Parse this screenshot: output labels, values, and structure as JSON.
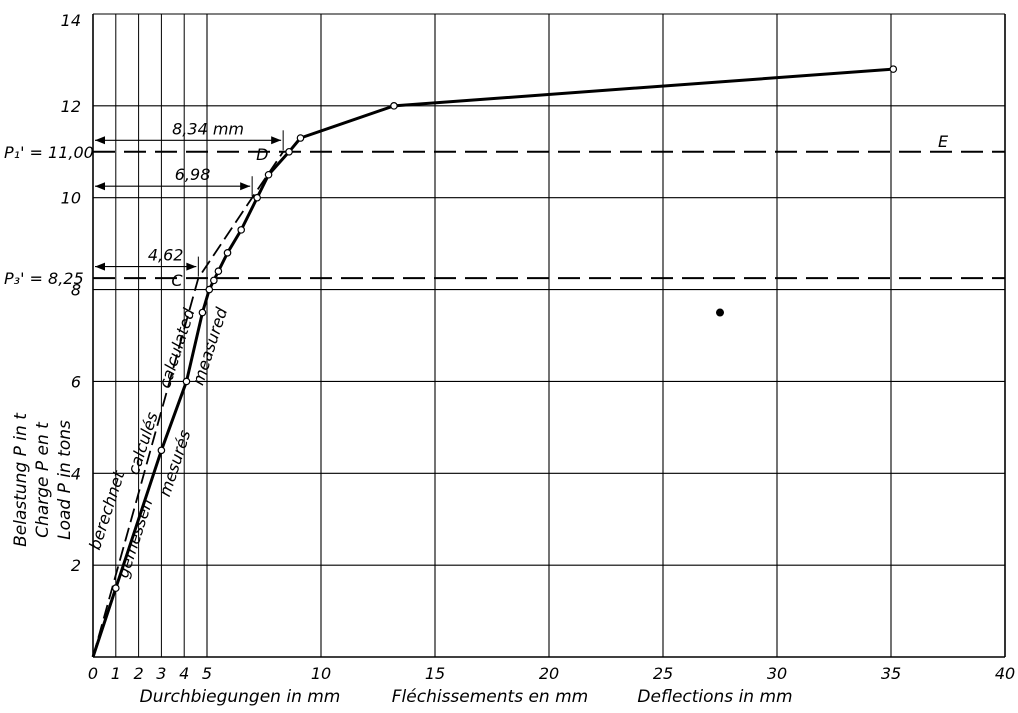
{
  "chart_data": {
    "type": "line",
    "xlabels": [
      "Durchbiegungen in mm",
      "Fléchissements en mm",
      "Deflections in mm"
    ],
    "ylabels": [
      "Belastung  P in t",
      "Charge  P en t",
      "Load  P in tons"
    ],
    "xlim": [
      0,
      40
    ],
    "ylim": [
      0,
      14
    ],
    "xticks_major": [
      0,
      5,
      10,
      15,
      20,
      25,
      30,
      35,
      40
    ],
    "xticks_minor": [
      1,
      2,
      3,
      4
    ],
    "yticks": [
      2,
      4,
      6,
      8,
      10,
      12,
      14
    ],
    "xtick_labels": [
      "0",
      "1",
      "2",
      "3",
      "4",
      "5",
      "10",
      "15",
      "20",
      "25",
      "30",
      "35",
      "40"
    ],
    "ytick_labels": [
      "2",
      "4",
      "6",
      "8",
      "10",
      "12",
      "14"
    ],
    "grid": true,
    "series": [
      {
        "name": "measured",
        "labels": [
          "gemessen",
          "mesurés",
          "measured"
        ],
        "style": "solid",
        "color": "#000000",
        "x": [
          0,
          1.0,
          3.0,
          4.1,
          4.8,
          5.1,
          5.3,
          5.5,
          5.9,
          6.5,
          7.2,
          7.7,
          8.6,
          9.1,
          13.2,
          35.1
        ],
        "y": [
          0,
          1.5,
          4.5,
          6.0,
          7.5,
          8.0,
          8.2,
          8.4,
          8.8,
          9.3,
          10.0,
          10.5,
          11.0,
          11.3,
          12.0,
          12.8
        ]
      },
      {
        "name": "calculated",
        "labels": [
          "berechnet",
          "calculés",
          "calculated"
        ],
        "style": "dashed",
        "color": "#000000",
        "x": [
          0,
          4.62,
          6.98,
          8.34
        ],
        "y": [
          0,
          8.25,
          10.0,
          11.0
        ]
      }
    ],
    "reference_lines": [
      {
        "label": "P₁' = 11,00",
        "y": 11.0,
        "end_label": "E"
      },
      {
        "label": "P₃' = 8,25",
        "y": 8.25
      }
    ],
    "annotations": [
      {
        "text": "8,34 mm",
        "from_x": 0,
        "to_x": 8.34,
        "y": 11.25
      },
      {
        "text": "6,98",
        "from_x": 0,
        "to_x": 6.98,
        "y": 10.25
      },
      {
        "text": "4,62",
        "from_x": 0,
        "to_x": 4.62,
        "y": 8.5
      }
    ],
    "point_labels": [
      {
        "text": "D",
        "x": 8.34,
        "y": 11.0
      },
      {
        "text": "C",
        "x": 4.62,
        "y": 8.25
      }
    ],
    "extra_marks": [
      {
        "x": 27.5,
        "y": 7.5
      }
    ]
  }
}
